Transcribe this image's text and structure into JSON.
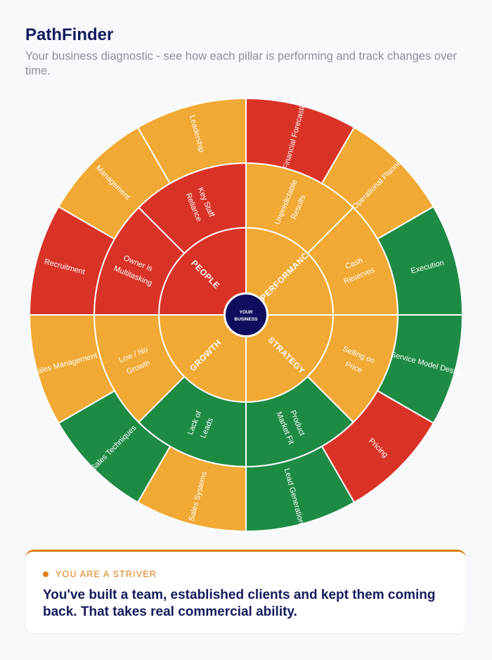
{
  "header": {
    "title": "PathFinder",
    "subtitle": "Your business diagnostic - see how each pillar is performing and track changes over time."
  },
  "colors": {
    "red": "#d93327",
    "amber": "#f0a934",
    "green": "#1e8b45",
    "navy": "#0f0e5e",
    "accent": "#e07d10"
  },
  "wheel": {
    "center_label": [
      "YOUR",
      "BUSINESS"
    ],
    "pillars": [
      {
        "name": "PERFORMANCE",
        "status": "amber"
      },
      {
        "name": "STRATEGY",
        "status": "amber"
      },
      {
        "name": "GROWTH",
        "status": "amber"
      },
      {
        "name": "PEOPLE",
        "status": "red"
      }
    ],
    "middle_ring": [
      {
        "lines": [
          "Unpredictable",
          "Results"
        ],
        "status": "amber"
      },
      {
        "lines": [
          "Cash",
          "Reserves"
        ],
        "status": "amber"
      },
      {
        "lines": [
          "Selling on",
          "Price"
        ],
        "status": "amber"
      },
      {
        "lines": [
          "Product",
          "Market Fit"
        ],
        "status": "green"
      },
      {
        "lines": [
          "Lack of",
          "Leads"
        ],
        "status": "green"
      },
      {
        "lines": [
          "Low / No",
          "Growth"
        ],
        "status": "amber"
      },
      {
        "lines": [
          "Owner is",
          "Multitasking"
        ],
        "status": "red"
      },
      {
        "lines": [
          "Key Staff",
          "Reliance"
        ],
        "status": "red"
      }
    ],
    "outer_ring": [
      {
        "lines": [
          "Financial Forecasting"
        ],
        "status": "red"
      },
      {
        "lines": [
          "Operational Planning"
        ],
        "status": "amber"
      },
      {
        "lines": [
          "Execution"
        ],
        "status": "green"
      },
      {
        "lines": [
          "Service Model Design"
        ],
        "status": "green"
      },
      {
        "lines": [
          "Pricing"
        ],
        "status": "red"
      },
      {
        "lines": [
          "Lead Generation"
        ],
        "status": "green"
      },
      {
        "lines": [
          "Sales Systems"
        ],
        "status": "amber"
      },
      {
        "lines": [
          "Sales Techniques"
        ],
        "status": "green"
      },
      {
        "lines": [
          "Sales Management"
        ],
        "status": "amber"
      },
      {
        "lines": [
          "Recruitment"
        ],
        "status": "red"
      },
      {
        "lines": [
          "Management"
        ],
        "status": "amber"
      },
      {
        "lines": [
          "Leadership"
        ],
        "status": "amber"
      }
    ]
  },
  "result": {
    "badge": "YOU ARE A STRIVER",
    "message": "You've built a team, established clients and kept them coming back. That takes real commercial ability."
  }
}
